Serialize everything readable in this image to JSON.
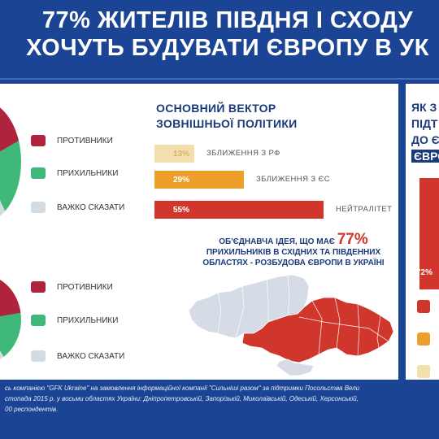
{
  "header": {
    "title_line1": "77% ЖИТЕЛІВ ПІВДНЯ І СХОДУ",
    "title_line2": "ХОЧУТЬ БУДУВАТИ ЄВРОПУ В УК"
  },
  "pies": {
    "legend_top": [
      "ПРОТИВНИКИ",
      "ПРИХИЛЬНИКИ",
      "ВАЖКО СКАЗАТИ"
    ],
    "legend_bottom": [
      "ПРОТИВНИКИ",
      "ПРИХИЛЬНИКИ",
      "ВАЖКО СКАЗАТИ"
    ],
    "colors": [
      "#b0233c",
      "#3fb97a",
      "#d3dbe3"
    ]
  },
  "vector": {
    "title_line1": "ОСНОВНИЙ ВЕКТОР",
    "title_line2": "ЗОВНІШНЬОЇ ПОЛІТИКИ"
  },
  "chart_data": {
    "type": "bar",
    "title": "ОСНОВНИЙ ВЕКТОР ЗОВНІШНЬОЇ ПОЛІТИКИ",
    "categories": [
      "ЗБЛИЖЕННЯ З РФ",
      "ЗБЛИЖЕННЯ З ЄС",
      "НЕЙТРАЛІТЕТ"
    ],
    "values": [
      13,
      29,
      55
    ],
    "value_labels": [
      "13%",
      "29%",
      "55%"
    ],
    "colors": [
      "#f3deae",
      "#ee9e2a",
      "#d0362c"
    ],
    "orientation": "horizontal"
  },
  "idea": {
    "line1": "ОБ'ЄДНАВЧА ІДЕЯ, ЩО МАЄ",
    "big": "77%",
    "line2": "ПРИХИЛЬНИКІВ В СХІДНИХ ТА ПІВДЕННИХ",
    "line3": "ОБЛАСТЯХ - РОЗБУДОВА ЄВРОПИ В УКРАЇНІ"
  },
  "right_panel": {
    "title_line1": "ЯК З",
    "title_line2": "ПІДТ",
    "title_line3": "ДО Є",
    "title_line4": "ЄВРО",
    "value_label": "72%",
    "swatches": [
      "#d0362c",
      "#ee9e2a",
      "#f3deae"
    ]
  },
  "footer": {
    "line1": "сь компанією \"GFK Ukraine\" на замовлення інформаційної компанії \"Сильніші разом\" за підтримки Посольства Вели",
    "line2": "стопада 2015 р. у восьми областях України: Дніпропетровській, Запорізькій, Миколаївській, Одеській, Херсонській,",
    "line3": "00 респондентів."
  }
}
